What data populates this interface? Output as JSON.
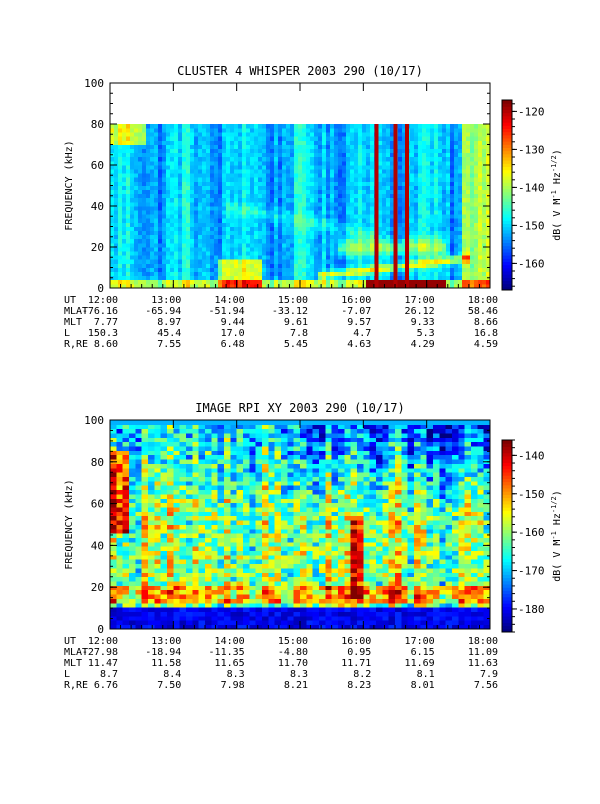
{
  "chart_data": [
    {
      "type": "heatmap",
      "title": "CLUSTER 4 WHISPER 2003 290 (10/17)",
      "ylabel": "FREQUENCY (kHz)",
      "ylim": [
        0,
        100
      ],
      "yticks": [
        "0",
        "20",
        "40",
        "60",
        "80",
        "100"
      ],
      "data_top_khz": 80,
      "xlim": [
        "12:00",
        "18:00"
      ],
      "colorbar": {
        "label": "dB( V M⁻¹ Hz⁻¹ᐟ²)",
        "label_parts": {
          "a": "dB( V M",
          "b": "-1",
          "c": " Hz",
          "d": "-1/2",
          "e": ")"
        },
        "range": [
          -167,
          -117
        ],
        "ticks": [
          "-120",
          "-130",
          "-140",
          "-150",
          "-160"
        ]
      },
      "ephemeris": {
        "labels": [
          "UT",
          "MLAT",
          "MLT",
          "L",
          "R,RE"
        ],
        "columns": [
          [
            "12:00",
            "-76.16",
            "7.77",
            "150.3",
            "8.60"
          ],
          [
            "13:00",
            "-65.94",
            "8.97",
            "45.4",
            "7.55"
          ],
          [
            "14:00",
            "-51.94",
            "9.44",
            "17.0",
            "6.48"
          ],
          [
            "15:00",
            "-33.12",
            "9.61",
            "7.8",
            "5.45"
          ],
          [
            "16:00",
            "-7.07",
            "9.57",
            "4.7",
            "4.63"
          ],
          [
            "17:00",
            "26.12",
            "9.33",
            "5.3",
            "4.29"
          ],
          [
            "18:00",
            "58.46",
            "8.66",
            "16.8",
            "4.59"
          ]
        ]
      }
    },
    {
      "type": "heatmap",
      "title": "IMAGE RPI XY 2003 290 (10/17)",
      "ylabel": "FREQUENCY (kHz)",
      "ylim": [
        0,
        100
      ],
      "yticks": [
        "0",
        "20",
        "40",
        "60",
        "80",
        "100"
      ],
      "xlim": [
        "12:00",
        "18:00"
      ],
      "colorbar": {
        "label": "dB( V M⁻¹ Hz⁻¹ᐟ²)",
        "label_parts": {
          "a": "dB( V M",
          "b": "-1",
          "c": " Hz",
          "d": "-1/2",
          "e": ")"
        },
        "range": [
          -186,
          -136
        ],
        "ticks": [
          "-140",
          "-150",
          "-160",
          "-170",
          "-180"
        ]
      },
      "ephemeris": {
        "labels": [
          "UT",
          "MLAT",
          "MLT",
          "L",
          "R,RE"
        ],
        "columns": [
          [
            "12:00",
            "-27.98",
            "11.47",
            "8.7",
            "6.76"
          ],
          [
            "13:00",
            "-18.94",
            "11.58",
            "8.4",
            "7.50"
          ],
          [
            "14:00",
            "-11.35",
            "11.65",
            "8.3",
            "7.98"
          ],
          [
            "15:00",
            "-4.80",
            "11.70",
            "8.3",
            "8.21"
          ],
          [
            "16:00",
            "0.95",
            "11.71",
            "8.2",
            "8.23"
          ],
          [
            "17:00",
            "6.15",
            "11.69",
            "8.1",
            "8.01"
          ],
          [
            "18:00",
            "11.09",
            "11.63",
            "7.9",
            "7.56"
          ]
        ]
      }
    }
  ]
}
